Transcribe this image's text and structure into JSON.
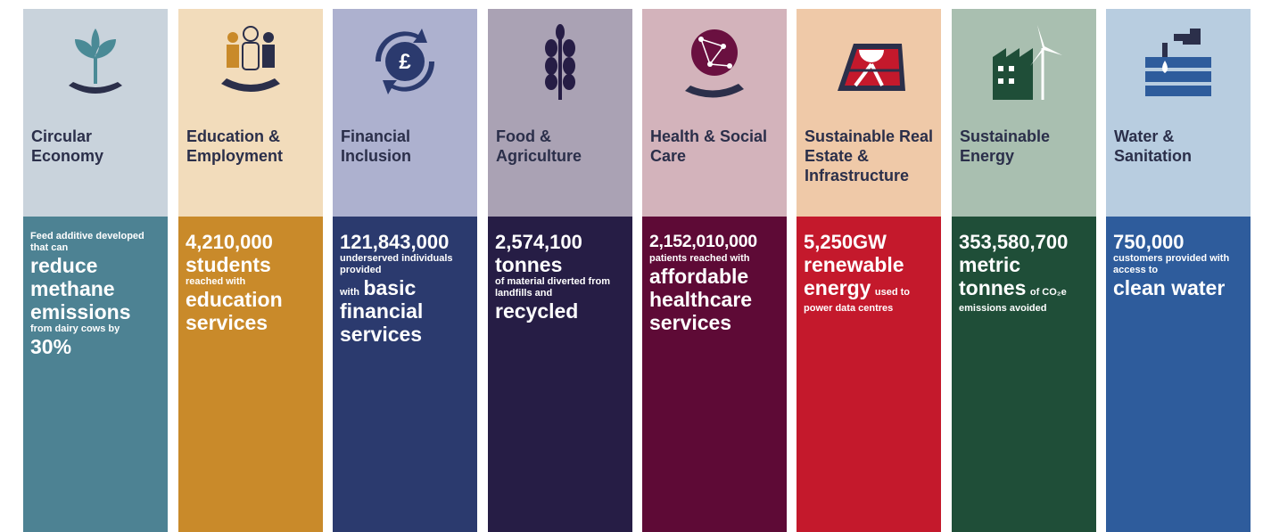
{
  "columns": [
    {
      "title": "Circular Economy",
      "stats": [
        "Feed additive developed that can",
        "reduce methane emissions",
        "from dairy cows by",
        "30%"
      ]
    },
    {
      "title": "Education & Employment",
      "stats": [
        "4,210,000",
        "students",
        "reached with",
        "education services"
      ]
    },
    {
      "title": "Financial Inclusion",
      "stats": [
        "121,843,000",
        "underserved individuals provided",
        "with",
        "basic financial services"
      ]
    },
    {
      "title": "Food & Agriculture",
      "stats": [
        "2,574,100",
        "tonnes",
        "of material diverted from landfills and",
        "recycled"
      ]
    },
    {
      "title": "Health & Social Care",
      "stats": [
        "2,152,010,000",
        "patients reached with",
        "affordable healthcare services"
      ]
    },
    {
      "title": "Sustainable Real Estate & Infrastructure",
      "stats": [
        "5,250GW",
        "renewable",
        "energy",
        "used to power data centres"
      ]
    },
    {
      "title": "Sustainable Energy",
      "stats": [
        "353,580,700",
        "metric",
        "tonnes",
        "of CO₂e emissions avoided"
      ]
    },
    {
      "title": "Water & Sanitation",
      "stats": [
        "750,000",
        "customers provided with access to",
        "clean water"
      ]
    }
  ]
}
